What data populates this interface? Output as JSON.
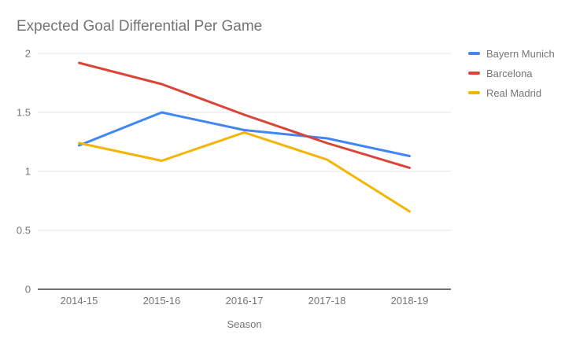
{
  "chart_data": {
    "type": "line",
    "title": "Expected Goal Differential Per Game",
    "xlabel": "Season",
    "ylabel": "",
    "categories": [
      "2014-15",
      "2015-16",
      "2016-17",
      "2017-18",
      "2018-19"
    ],
    "series": [
      {
        "name": "Bayern Munich",
        "color": "#4285F4",
        "values": [
          1.22,
          1.5,
          1.35,
          1.28,
          1.13
        ]
      },
      {
        "name": "Barcelona",
        "color": "#DB4437",
        "values": [
          1.92,
          1.74,
          1.48,
          1.24,
          1.03
        ]
      },
      {
        "name": "Real Madrid",
        "color": "#F4B400",
        "values": [
          1.24,
          1.09,
          1.33,
          1.1,
          0.66
        ]
      }
    ],
    "ylim": [
      0,
      2
    ],
    "yticks": [
      0,
      0.5,
      1,
      1.5,
      2
    ],
    "grid": true,
    "legend_position": "right"
  },
  "colors": {
    "title_text": "#757575",
    "tick_text": "#757575",
    "legend_text": "#757575",
    "gridline": "#e6e6e6",
    "axis_line": "#424242",
    "background": "#ffffff"
  }
}
